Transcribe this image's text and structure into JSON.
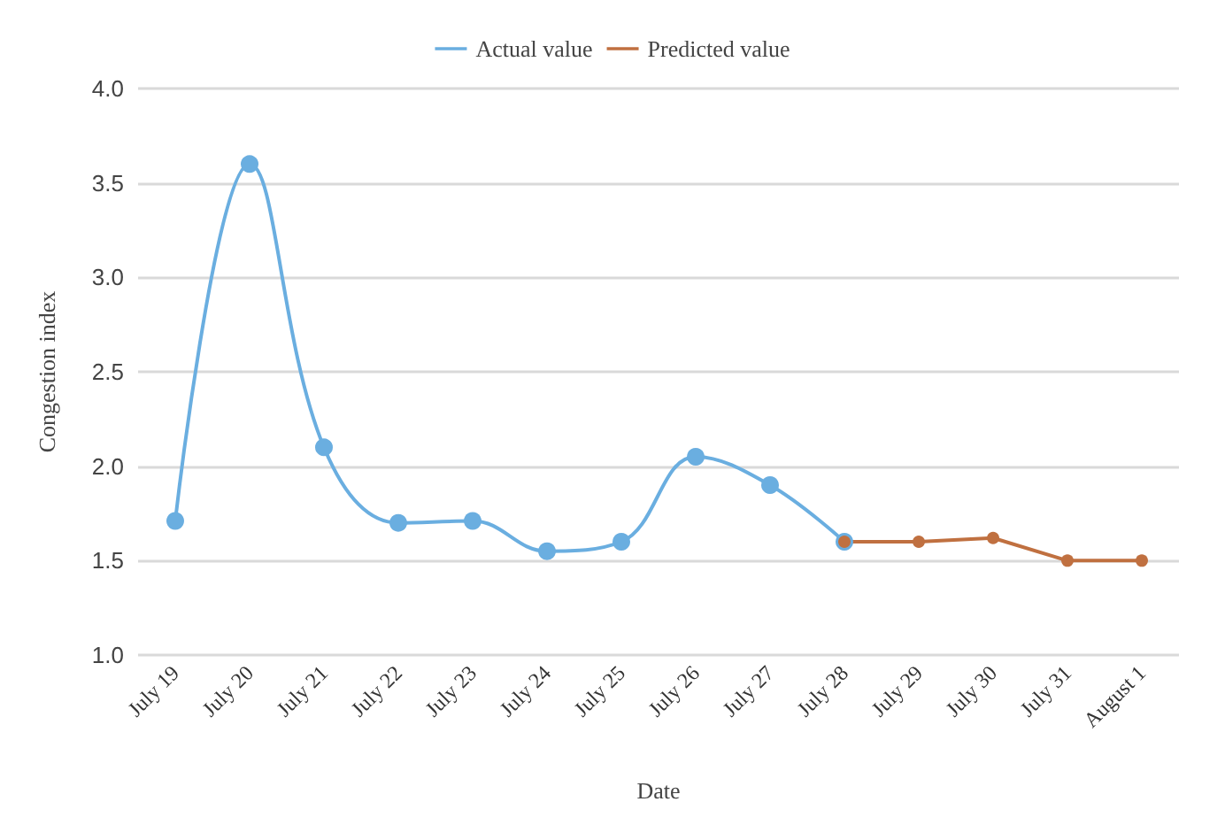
{
  "chart_data": {
    "type": "line",
    "xlabel": "Date",
    "ylabel": "Congestion index",
    "categories": [
      "July 19",
      "July 20",
      "July 21",
      "July 22",
      "July 23",
      "July 24",
      "July 25",
      "July 26",
      "July 27",
      "July 28",
      "July 29",
      "July 30",
      "July 31",
      "August 1"
    ],
    "series": [
      {
        "name": "Actual value",
        "color": "#6aaee0",
        "values": [
          1.71,
          3.6,
          2.1,
          1.7,
          1.71,
          1.55,
          1.6,
          2.05,
          1.9,
          1.6,
          null,
          null,
          null,
          null
        ]
      },
      {
        "name": "Predicted value",
        "color": "#c07040",
        "values": [
          null,
          null,
          null,
          null,
          null,
          null,
          null,
          null,
          null,
          1.6,
          1.6,
          1.62,
          1.5,
          1.5
        ]
      }
    ],
    "ylim": [
      1.0,
      4.0
    ],
    "yticks": [
      {
        "value": 1.0,
        "label": "1.0"
      },
      {
        "value": 1.5,
        "label": "1.5"
      },
      {
        "value": 2.0,
        "label": "2.0"
      },
      {
        "value": 2.5,
        "label": "2.5"
      },
      {
        "value": 3.0,
        "label": "3.0"
      },
      {
        "value": 3.5,
        "label": "3.5"
      },
      {
        "value": 4.0,
        "label": "4.0"
      }
    ],
    "grid": "y",
    "legend": "top",
    "marker": "circle",
    "line_style": "solid"
  }
}
